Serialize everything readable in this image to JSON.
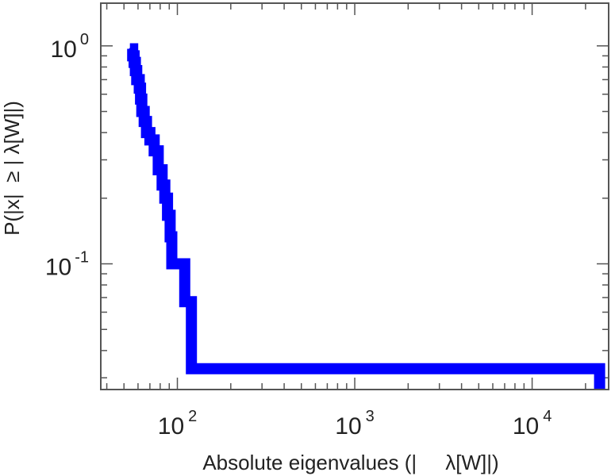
{
  "chart_data": {
    "type": "line",
    "title": "",
    "xlabel": "Absolute eigenvalues (|     λ[W]|)",
    "ylabel": "P(|x|  ≥ | λ[W]|)",
    "x_scale": "log",
    "y_scale": "log",
    "xlim": [
      37,
      27000
    ],
    "ylim": [
      0.0265,
      1.57
    ],
    "grid": false,
    "legend": "none",
    "series_color": "#0000ff",
    "x_ticks": [
      {
        "base": "10",
        "exp": "2",
        "value": 100
      },
      {
        "base": "10",
        "exp": "3",
        "value": 1000
      },
      {
        "base": "10",
        "exp": "4",
        "value": 10000
      }
    ],
    "y_ticks": [
      {
        "base": "10",
        "exp": "0",
        "value": 1
      },
      {
        "base": "10",
        "exp": "-1",
        "value": 0.1
      }
    ],
    "series": [
      {
        "step": "ccdf",
        "points": [
          {
            "x": 54,
            "y": 0.97
          },
          {
            "x": 56,
            "y": 0.9
          },
          {
            "x": 57,
            "y": 0.84
          },
          {
            "x": 58,
            "y": 0.77
          },
          {
            "x": 59,
            "y": 0.7
          },
          {
            "x": 61,
            "y": 0.64
          },
          {
            "x": 62,
            "y": 0.57
          },
          {
            "x": 63,
            "y": 0.5
          },
          {
            "x": 65,
            "y": 0.45
          },
          {
            "x": 67,
            "y": 0.4
          },
          {
            "x": 70,
            "y": 0.37
          },
          {
            "x": 74,
            "y": 0.33
          },
          {
            "x": 78,
            "y": 0.27
          },
          {
            "x": 82,
            "y": 0.23
          },
          {
            "x": 85,
            "y": 0.2
          },
          {
            "x": 88,
            "y": 0.167
          },
          {
            "x": 91,
            "y": 0.133
          },
          {
            "x": 93,
            "y": 0.1
          },
          {
            "x": 110,
            "y": 0.067
          },
          {
            "x": 120,
            "y": 0.033
          },
          {
            "x": 24000,
            "y": 0.033
          }
        ]
      }
    ]
  }
}
